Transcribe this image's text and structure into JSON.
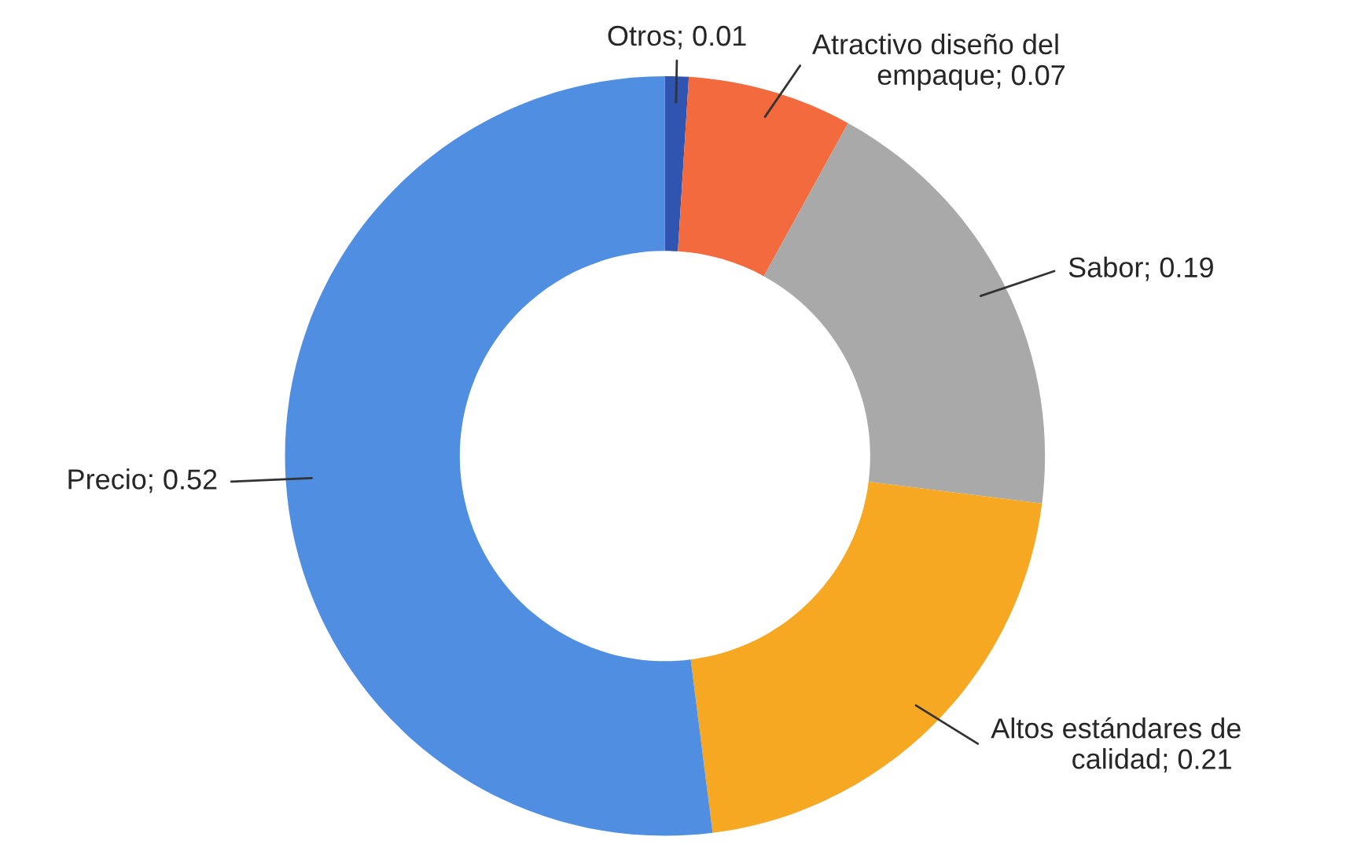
{
  "chart_data": {
    "type": "donut",
    "categories": [
      "Otros",
      "Atractivo diseño del\nempaque",
      "Sabor",
      "Altos estándares de\ncalidad",
      "Precio"
    ],
    "values": [
      0.01,
      0.07,
      0.19,
      0.21,
      0.52
    ],
    "colors": [
      "#2f55b0",
      "#f26a3d",
      "#a9a9a9",
      "#f7a823",
      "#4f8ee0"
    ],
    "value_labels": [
      "; 0.01",
      "; 0.07",
      "; 0.19",
      "; 0.21",
      "; 0.52"
    ],
    "legend": false
  }
}
